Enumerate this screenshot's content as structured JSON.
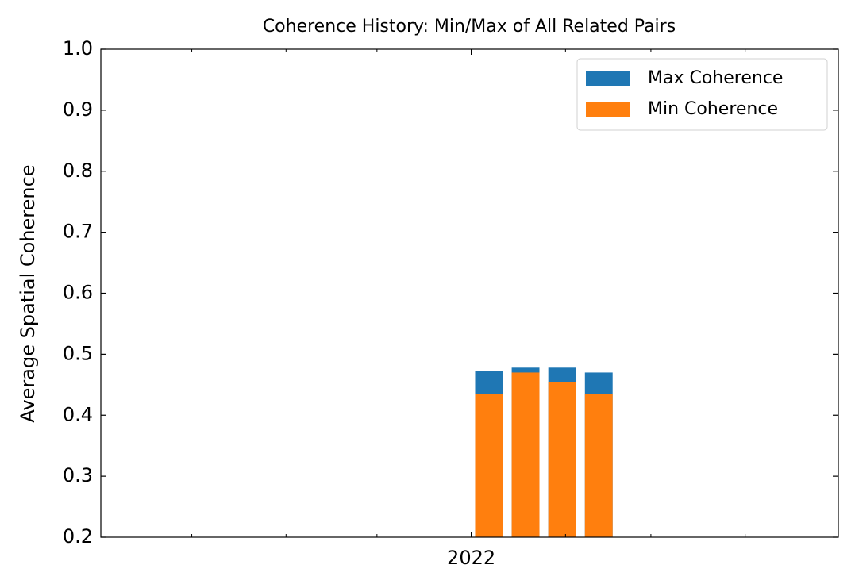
{
  "chart_data": {
    "type": "bar",
    "title": "Coherence History: Min/Max of All Related Pairs",
    "y_label": "Average Spatial Coherence",
    "x": [
      2022.016,
      2022.049,
      2022.082,
      2022.115
    ],
    "bar_width": 0.025,
    "series": [
      {
        "name": "Max Coherence",
        "color": "#1f77b4",
        "values": [
          0.473,
          0.478,
          0.478,
          0.47
        ]
      },
      {
        "name": "Min Coherence",
        "color": "#ff7f0e",
        "values": [
          0.435,
          0.47,
          0.454,
          0.435
        ]
      }
    ],
    "xlim": [
      2021.666,
      2022.331
    ],
    "xticks": [
      2022
    ],
    "xminorticks": [
      2021.748,
      2021.833,
      2021.915,
      2022.085,
      2022.162,
      2022.247
    ],
    "ylim": [
      0.2,
      1.0
    ],
    "yticks": [
      0.2,
      0.3,
      0.4,
      0.5,
      0.6,
      0.7,
      0.8,
      0.9,
      1.0
    ],
    "yticklabels": [
      "0.2",
      "0.3",
      "0.4",
      "0.5",
      "0.6",
      "0.7",
      "0.8",
      "0.9",
      "1.0"
    ],
    "grid": false,
    "legend": "upper right"
  }
}
